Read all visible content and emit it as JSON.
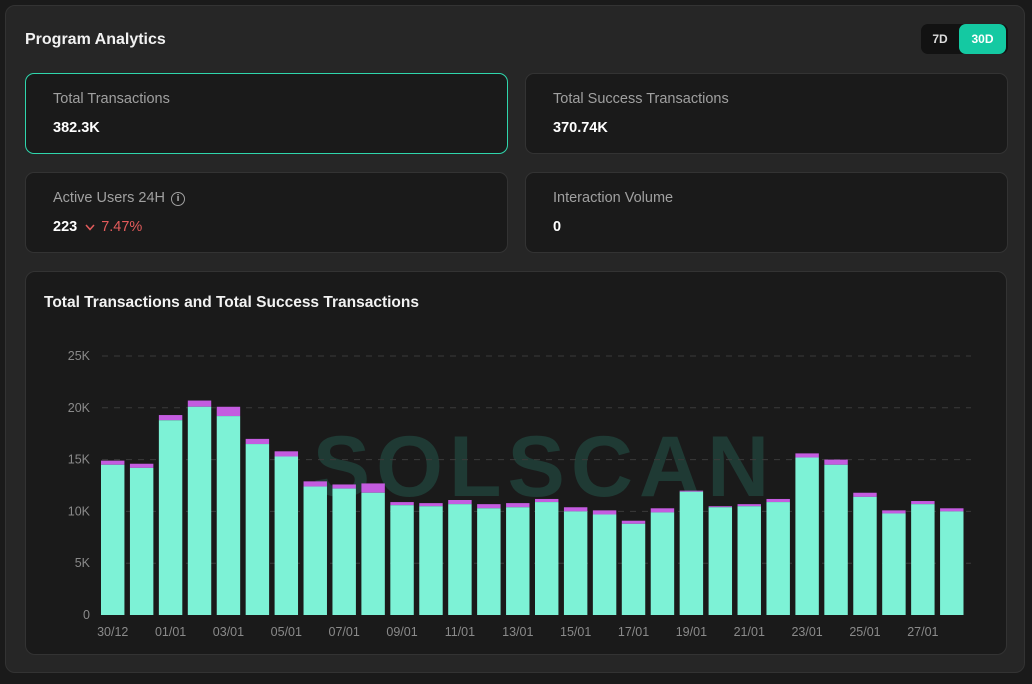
{
  "header": {
    "title": "Program Analytics"
  },
  "range_toggle": {
    "option_7d": "7D",
    "option_30d": "30D",
    "selected": "30D"
  },
  "stats": {
    "total_transactions": {
      "label": "Total Transactions",
      "value": "382.3K"
    },
    "total_success": {
      "label": "Total Success Transactions",
      "value": "370.74K"
    },
    "active_users": {
      "label": "Active Users 24H",
      "value": "223",
      "change": "7.47%",
      "change_direction": "down"
    },
    "interaction_volume": {
      "label": "Interaction Volume",
      "value": "0"
    }
  },
  "colors": {
    "accent": "#14c9a2",
    "success_bar": "#7df2d6",
    "failed_bar": "#c45ce0",
    "negative": "#e35b5b"
  },
  "chart_data": {
    "type": "bar",
    "title": "Total Transactions and Total Success Transactions",
    "ylim": [
      0,
      25000
    ],
    "yticks": [
      0,
      5000,
      10000,
      15000,
      20000,
      25000
    ],
    "ytick_labels": [
      "0",
      "5K",
      "10K",
      "15K",
      "20K",
      "25K"
    ],
    "xtick_labels": [
      "30/12",
      "01/01",
      "03/01",
      "05/01",
      "07/01",
      "09/01",
      "11/01",
      "13/01",
      "15/01",
      "17/01",
      "19/01",
      "21/01",
      "23/01",
      "25/01",
      "27/01"
    ],
    "grid": true,
    "stacked": true,
    "series": [
      {
        "values": [
          14500,
          14200,
          18800,
          20100,
          19200,
          16500,
          15300,
          12400,
          12200,
          11800,
          10600,
          10500,
          10700,
          10300,
          10400,
          10900,
          10000,
          9700,
          8800,
          9900,
          11900,
          10400,
          10500,
          10900,
          15200,
          14500,
          11400,
          9800,
          10700,
          10000
        ]
      },
      {
        "values": [
          400,
          400,
          500,
          600,
          900,
          500,
          500,
          500,
          400,
          900,
          300,
          300,
          400,
          400,
          400,
          300,
          400,
          400,
          300,
          400,
          100,
          100,
          200,
          300,
          400,
          500,
          400,
          300,
          300,
          300
        ]
      }
    ]
  },
  "watermark": "SOLSCAN"
}
